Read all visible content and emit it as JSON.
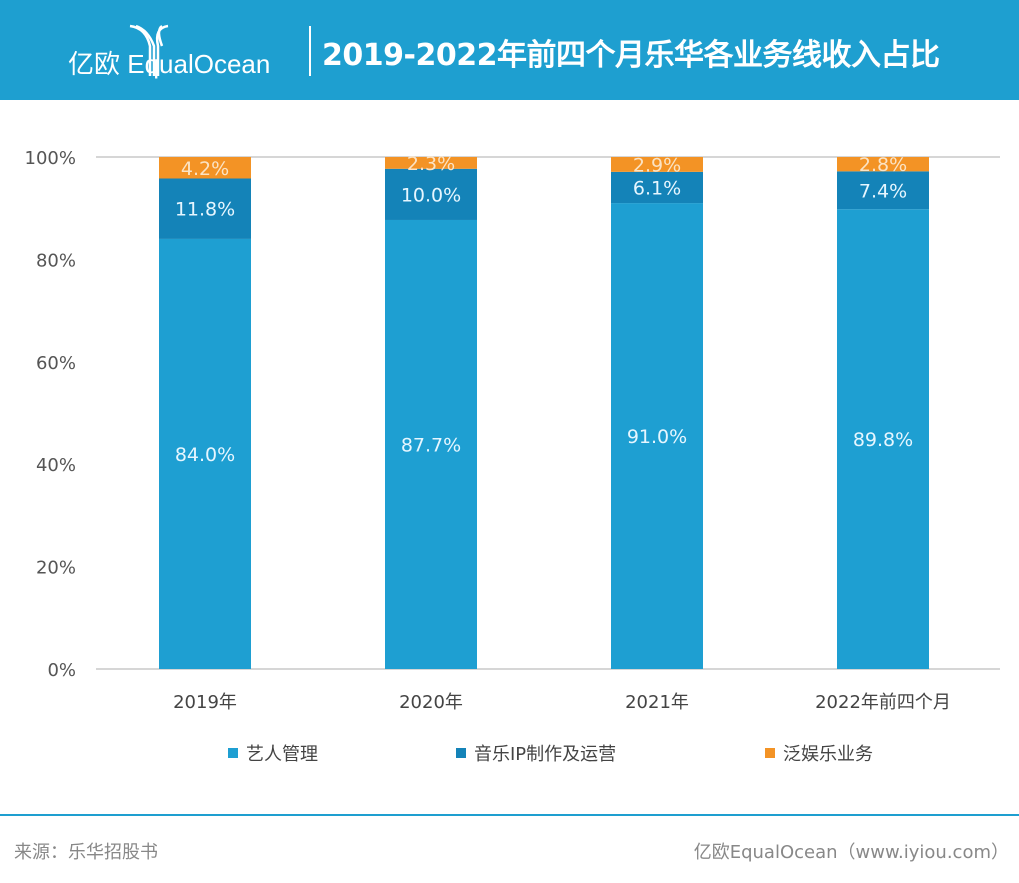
{
  "header": {
    "logo_text": "亿欧 EqualOcean",
    "title": "2019-2022年前四个月乐华各业务线收入占比"
  },
  "chart_data": {
    "type": "bar",
    "stacked": true,
    "title": "2019-2022年前四个月乐华各业务线收入占比",
    "categories": [
      "2019年",
      "2020年",
      "2021年",
      "2022年前四个月"
    ],
    "series": [
      {
        "name": "艺人管理",
        "values": [
          84.0,
          87.7,
          91.0,
          89.8
        ],
        "labels": [
          "84.0%",
          "87.7%",
          "91.0%",
          "89.8%"
        ],
        "color": "#1e9fd2"
      },
      {
        "name": "音乐IP制作及运营",
        "values": [
          11.8,
          10.0,
          6.1,
          7.4
        ],
        "labels": [
          "11.8%",
          "10.0%",
          "6.1%",
          "7.4%"
        ],
        "color": "#1483b8"
      },
      {
        "name": "泛娱乐业务",
        "values": [
          4.2,
          2.3,
          2.9,
          2.8
        ],
        "labels": [
          "4.2%",
          "2.3%",
          "2.9%",
          "2.8%"
        ],
        "color": "#f39325"
      }
    ],
    "yticks": [
      "0%",
      "20%",
      "40%",
      "60%",
      "80%",
      "100%"
    ],
    "ylim": [
      0,
      100
    ],
    "grid": false,
    "legend_position": "bottom"
  },
  "footer": {
    "source": "来源：乐华招股书",
    "credit": "亿欧EqualOcean（www.iyiou.com）"
  }
}
